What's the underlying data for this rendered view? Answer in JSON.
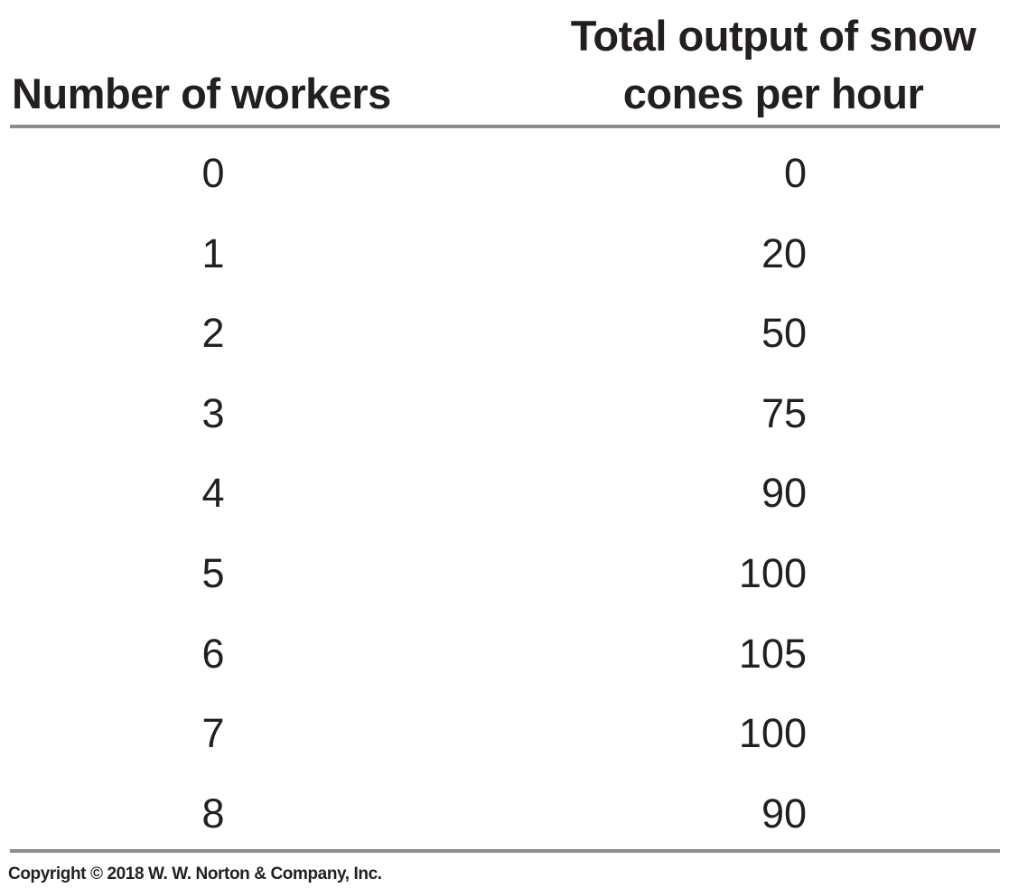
{
  "chart_data": {
    "type": "table",
    "columns": [
      "Number of workers",
      "Total output of snow cones per hour"
    ],
    "header": {
      "workers_label": "Number of workers",
      "output_label_line1": "Total output of snow",
      "output_label_line2": "cones per hour"
    },
    "rows": [
      {
        "workers": "0",
        "output": "0"
      },
      {
        "workers": "1",
        "output": "20"
      },
      {
        "workers": "2",
        "output": "50"
      },
      {
        "workers": "3",
        "output": "75"
      },
      {
        "workers": "4",
        "output": "90"
      },
      {
        "workers": "5",
        "output": "100"
      },
      {
        "workers": "6",
        "output": "105"
      },
      {
        "workers": "7",
        "output": "100"
      },
      {
        "workers": "8",
        "output": "90"
      }
    ]
  },
  "footer": {
    "copyright": "Copyright © 2018 W. W. Norton & Company, Inc."
  },
  "colors": {
    "text": "#231f20",
    "rule": "#8a8c8e",
    "background": "#ffffff"
  }
}
